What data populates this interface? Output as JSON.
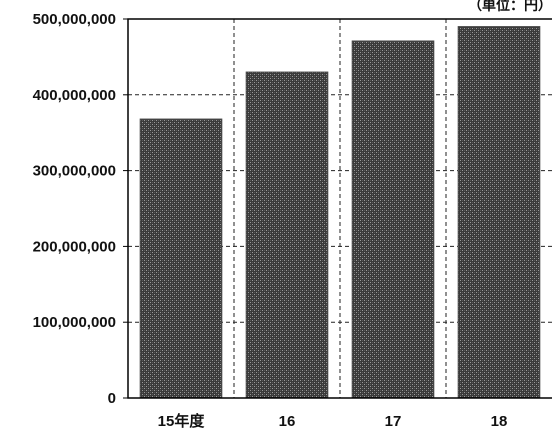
{
  "chart_data": {
    "type": "bar",
    "unit_label": "（単位：円）",
    "categories": [
      "15年度",
      "16",
      "17",
      "18"
    ],
    "values": [
      368000000,
      430000000,
      471000000,
      490000000
    ],
    "ylim": [
      0,
      500000000
    ],
    "yticks": [
      0,
      100000000,
      200000000,
      300000000,
      400000000,
      500000000
    ],
    "ytick_labels": [
      "0",
      "100,000,000",
      "200,000,000",
      "300,000,000",
      "400,000,000",
      "500,000,000"
    ],
    "grid": true,
    "grid_style": "dashed",
    "bar_color": "#4a4a4a",
    "title": "",
    "xlabel": "",
    "ylabel": ""
  }
}
